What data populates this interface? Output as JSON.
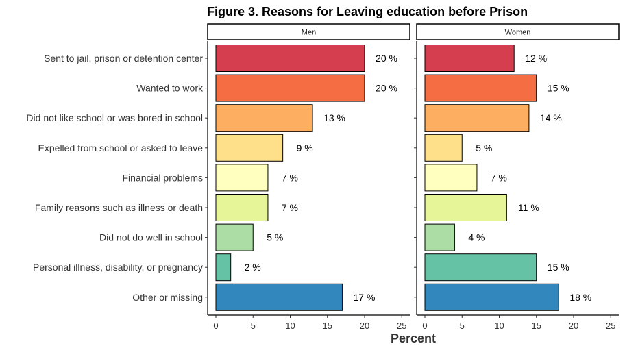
{
  "chart_data": {
    "type": "bar",
    "orientation": "horizontal",
    "title": "Figure 3. Reasons for Leaving education before Prison",
    "xlabel": "Percent",
    "ylabel": "",
    "xlim": [
      0,
      25
    ],
    "x_ticks": [
      0,
      5,
      10,
      15,
      20,
      25
    ],
    "grid": false,
    "legend": "none",
    "value_suffix": " %",
    "categories": [
      "Sent to jail, prison or detention center",
      "Wanted to work",
      "Did not like school or was bored in school",
      "Expelled from school or asked to leave",
      "Financial problems",
      "Family reasons such as illness or death",
      "Did not do well in school",
      "Personal illness, disability, or pregnancy",
      "Other or missing"
    ],
    "colors": [
      "#d53e4f",
      "#f46d43",
      "#fdae61",
      "#fee08b",
      "#ffffbf",
      "#e6f598",
      "#abdda4",
      "#66c2a5",
      "#3288bd"
    ],
    "panels": [
      {
        "name": "Men",
        "values": [
          20,
          20,
          13,
          9,
          7,
          7,
          5,
          2,
          17
        ]
      },
      {
        "name": "Women",
        "values": [
          12,
          15,
          14,
          5,
          7,
          11,
          4,
          15,
          18
        ]
      }
    ]
  }
}
